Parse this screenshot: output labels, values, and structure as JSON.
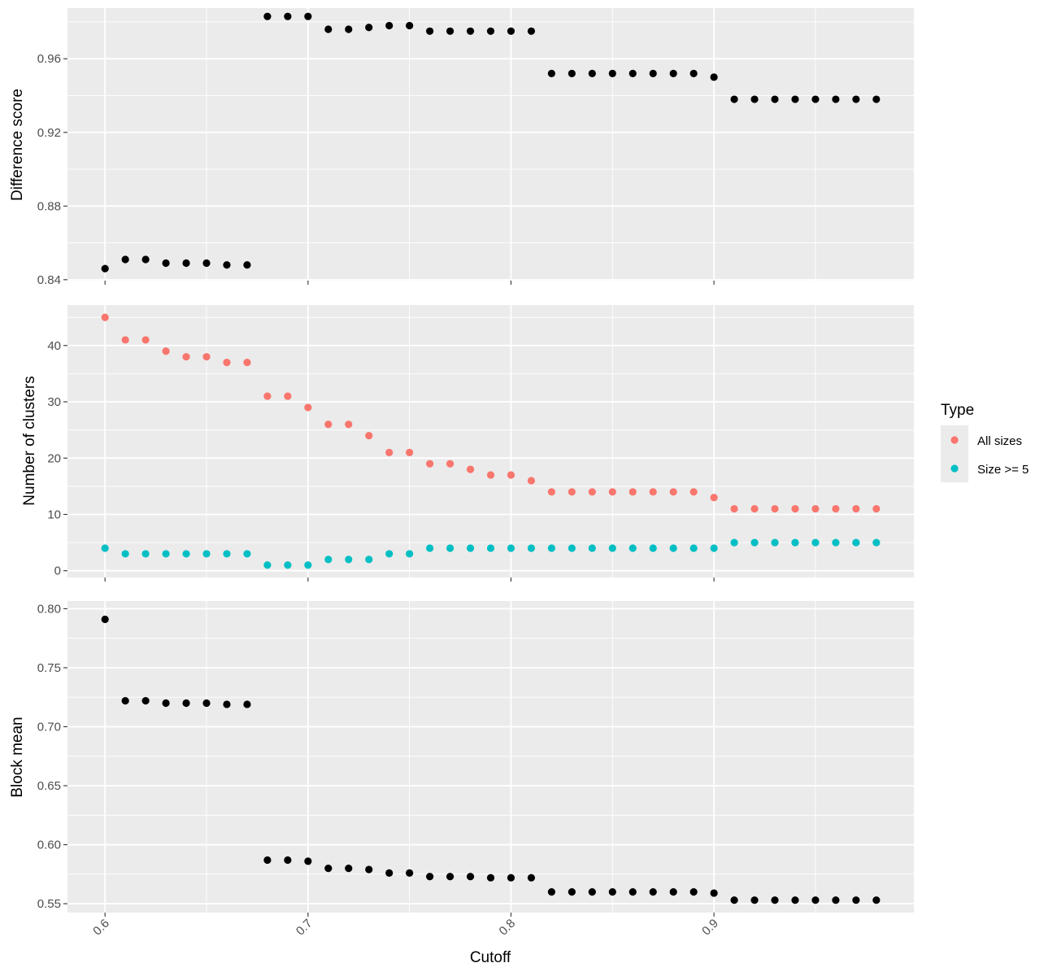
{
  "chart_data": [
    {
      "type": "scatter",
      "ylabel": "Difference score",
      "yticks": [
        0.84,
        0.88,
        0.92,
        0.96
      ],
      "ytick_labels": [
        "0.84",
        "0.88",
        "0.92",
        "0.96"
      ],
      "ylim": [
        0.8395,
        0.9875
      ],
      "xlim": [
        0.5815,
        0.9985
      ],
      "series": [
        {
          "color": "#000000",
          "x": [
            0.6,
            0.61,
            0.62,
            0.63,
            0.64,
            0.65,
            0.66,
            0.67,
            0.68,
            0.69,
            0.7,
            0.71,
            0.72,
            0.73,
            0.74,
            0.75,
            0.76,
            0.77,
            0.78,
            0.79,
            0.8,
            0.81,
            0.82,
            0.83,
            0.84,
            0.85,
            0.86,
            0.87,
            0.88,
            0.89,
            0.9,
            0.91,
            0.92,
            0.93,
            0.94,
            0.95,
            0.96,
            0.97,
            0.98
          ],
          "y": [
            0.846,
            0.851,
            0.851,
            0.849,
            0.849,
            0.849,
            0.848,
            0.848,
            0.983,
            0.983,
            0.983,
            0.976,
            0.976,
            0.977,
            0.978,
            0.978,
            0.975,
            0.975,
            0.975,
            0.975,
            0.975,
            0.975,
            0.952,
            0.952,
            0.952,
            0.952,
            0.952,
            0.952,
            0.952,
            0.952,
            0.95,
            0.938,
            0.938,
            0.938,
            0.938,
            0.938,
            0.938,
            0.938,
            0.938
          ]
        }
      ]
    },
    {
      "type": "scatter",
      "ylabel": "Number of clusters",
      "yticks": [
        0,
        10,
        20,
        30,
        40
      ],
      "ytick_labels": [
        "0",
        "10",
        "20",
        "30",
        "40"
      ],
      "ylim": [
        -1.2,
        47.2
      ],
      "xlim": [
        0.5815,
        0.9985
      ],
      "series": [
        {
          "name": "All sizes",
          "color": "#F8766D",
          "x": [
            0.6,
            0.61,
            0.62,
            0.63,
            0.64,
            0.65,
            0.66,
            0.67,
            0.68,
            0.69,
            0.7,
            0.71,
            0.72,
            0.73,
            0.74,
            0.75,
            0.76,
            0.77,
            0.78,
            0.79,
            0.8,
            0.81,
            0.82,
            0.83,
            0.84,
            0.85,
            0.86,
            0.87,
            0.88,
            0.89,
            0.9,
            0.91,
            0.92,
            0.93,
            0.94,
            0.95,
            0.96,
            0.97,
            0.98
          ],
          "y": [
            45,
            41,
            41,
            39,
            38,
            38,
            37,
            37,
            31,
            31,
            29,
            26,
            26,
            24,
            21,
            21,
            19,
            19,
            18,
            17,
            17,
            16,
            14,
            14,
            14,
            14,
            14,
            14,
            14,
            14,
            13,
            11,
            11,
            11,
            11,
            11,
            11,
            11,
            11
          ]
        },
        {
          "name": "Size >= 5",
          "color": "#00BFC4",
          "x": [
            0.6,
            0.61,
            0.62,
            0.63,
            0.64,
            0.65,
            0.66,
            0.67,
            0.68,
            0.69,
            0.7,
            0.71,
            0.72,
            0.73,
            0.74,
            0.75,
            0.76,
            0.77,
            0.78,
            0.79,
            0.8,
            0.81,
            0.82,
            0.83,
            0.84,
            0.85,
            0.86,
            0.87,
            0.88,
            0.89,
            0.9,
            0.91,
            0.92,
            0.93,
            0.94,
            0.95,
            0.96,
            0.97,
            0.98
          ],
          "y": [
            4,
            3,
            3,
            3,
            3,
            3,
            3,
            3,
            1,
            1,
            1,
            2,
            2,
            2,
            3,
            3,
            4,
            4,
            4,
            4,
            4,
            4,
            4,
            4,
            4,
            4,
            4,
            4,
            4,
            4,
            4,
            5,
            5,
            5,
            5,
            5,
            5,
            5,
            5
          ]
        }
      ]
    },
    {
      "type": "scatter",
      "ylabel": "Block mean",
      "yticks": [
        0.55,
        0.6,
        0.65,
        0.7,
        0.75,
        0.8
      ],
      "ytick_labels": [
        "0.55",
        "0.60",
        "0.65",
        "0.70",
        "0.75",
        "0.80"
      ],
      "ylim": [
        0.5425,
        0.8065
      ],
      "xlim": [
        0.5815,
        0.9985
      ],
      "series": [
        {
          "color": "#000000",
          "x": [
            0.6,
            0.61,
            0.62,
            0.63,
            0.64,
            0.65,
            0.66,
            0.67,
            0.68,
            0.69,
            0.7,
            0.71,
            0.72,
            0.73,
            0.74,
            0.75,
            0.76,
            0.77,
            0.78,
            0.79,
            0.8,
            0.81,
            0.82,
            0.83,
            0.84,
            0.85,
            0.86,
            0.87,
            0.88,
            0.89,
            0.9,
            0.91,
            0.92,
            0.93,
            0.94,
            0.95,
            0.96,
            0.97,
            0.98
          ],
          "y": [
            0.791,
            0.722,
            0.722,
            0.72,
            0.72,
            0.72,
            0.719,
            0.719,
            0.587,
            0.587,
            0.586,
            0.58,
            0.58,
            0.579,
            0.576,
            0.576,
            0.573,
            0.573,
            0.573,
            0.572,
            0.572,
            0.572,
            0.56,
            0.56,
            0.56,
            0.56,
            0.56,
            0.56,
            0.56,
            0.56,
            0.559,
            0.553,
            0.553,
            0.553,
            0.553,
            0.553,
            0.553,
            0.553,
            0.553
          ]
        }
      ]
    }
  ],
  "xaxis": {
    "label": "Cutoff",
    "ticks": [
      0.6,
      0.7,
      0.8,
      0.9
    ],
    "tick_labels": [
      "0.6",
      "0.7",
      "0.8",
      "0.9"
    ]
  },
  "legend": {
    "title": "Type",
    "items": [
      {
        "label": "All sizes",
        "color": "#F8766D"
      },
      {
        "label": "Size >= 5",
        "color": "#00BFC4"
      }
    ]
  },
  "style": {
    "panel_background": "#EBEBEB",
    "grid_color": "#FFFFFF"
  }
}
